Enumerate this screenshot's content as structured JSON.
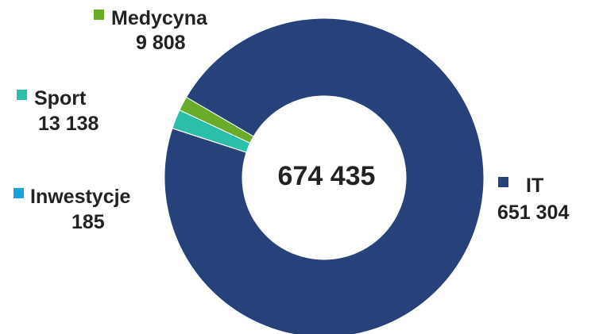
{
  "chart_data": {
    "type": "pie",
    "variant": "donut",
    "total_label": "674 435",
    "series": [
      {
        "name": "IT",
        "value_label": "651 304",
        "value": 651304,
        "color": "#27427a"
      },
      {
        "name": "Medycyna",
        "value_label": "9 808",
        "value": 9808,
        "color": "#6aab2a"
      },
      {
        "name": "Sport",
        "value_label": "13 138",
        "value": 13138,
        "color": "#2bbfa9"
      },
      {
        "name": "Inwestycje",
        "value_label": "185",
        "value": 185,
        "color": "#1aa3d9"
      }
    ]
  }
}
